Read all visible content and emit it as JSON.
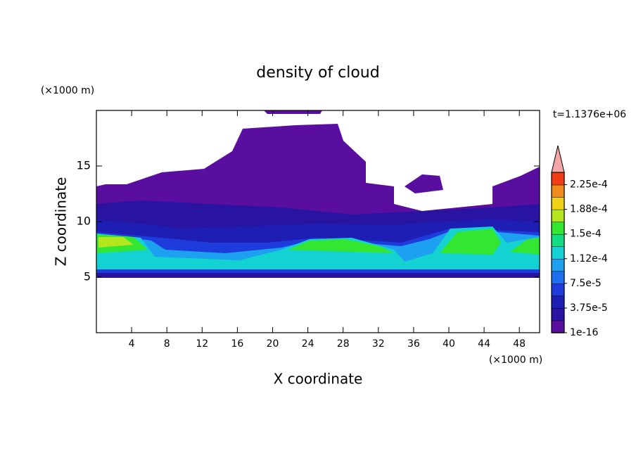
{
  "chart_data": {
    "type": "contour",
    "title": "density of cloud",
    "xlabel": "X coordinate",
    "ylabel": "Z coordinate",
    "xunit": "(×1000 m)",
    "yunit": "(×1000 m)",
    "annotation": "t=1.1376e+06",
    "xlim": [
      0,
      50.3
    ],
    "ylim": [
      0,
      20
    ],
    "xticks": [
      4,
      8,
      12,
      16,
      20,
      24,
      28,
      32,
      36,
      40,
      44,
      48
    ],
    "yticks": [
      5,
      10,
      15
    ],
    "colorbar": {
      "clim": [
        0,
        0.00024375
      ],
      "colors": [
        "#5a0ea0",
        "#2814a0",
        "#1e1eb4",
        "#1e3cdc",
        "#1e6ef0",
        "#1ea0f0",
        "#14d2d2",
        "#14dc82",
        "#32e632",
        "#b4e61e",
        "#f0d214",
        "#f08c1e",
        "#f03c14"
      ],
      "extend_color": "#f4a6a6",
      "ticks": [
        {
          "value": 1e-16,
          "label": "1e-16"
        },
        {
          "value": 3.75e-05,
          "label": "3.75e-5"
        },
        {
          "value": 7.5e-05,
          "label": "7.5e-5"
        },
        {
          "value": 0.0001125,
          "label": "1.12e-4"
        },
        {
          "value": 0.00015,
          "label": "1.5e-4"
        },
        {
          "value": 0.0001875,
          "label": "1.88e-4"
        },
        {
          "value": 0.000225,
          "label": "2.25e-4"
        }
      ]
    }
  }
}
